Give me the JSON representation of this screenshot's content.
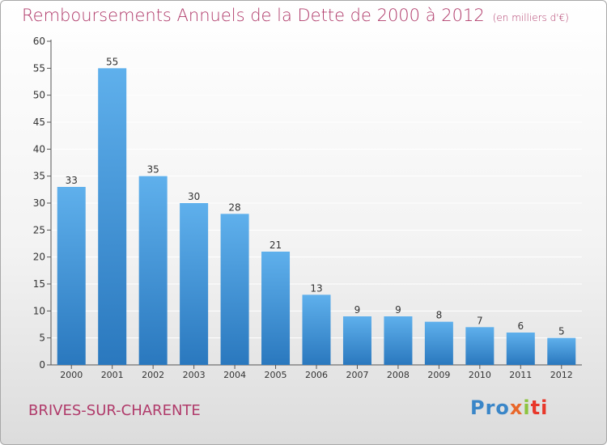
{
  "title": "Remboursements Annuels de la Dette de 2000 à 2012",
  "unit": "(en milliers d'€)",
  "town": "BRIVES-SUR-CHARENTE",
  "logo": {
    "part1": "Pro",
    "part2": "x",
    "part3": "i",
    "part4": "ti"
  },
  "colors": {
    "title": "#b03a6a",
    "bar_top": "#5fb0ec",
    "bar_bottom": "#2a78be",
    "grid": "#ffffff"
  },
  "chart_data": {
    "type": "bar",
    "categories": [
      "2000",
      "2001",
      "2002",
      "2003",
      "2004",
      "2005",
      "2006",
      "2007",
      "2008",
      "2009",
      "2010",
      "2011",
      "2012"
    ],
    "values": [
      33,
      55,
      35,
      30,
      28,
      21,
      13,
      9,
      9,
      8,
      7,
      6,
      5
    ],
    "title": "Remboursements Annuels de la Dette de 2000 à 2012",
    "xlabel": "",
    "ylabel": "",
    "ylim": [
      0,
      60
    ],
    "yticks": [
      0,
      5,
      10,
      15,
      20,
      25,
      30,
      35,
      40,
      45,
      50,
      55,
      60
    ],
    "grid": true,
    "data_labels": true
  }
}
